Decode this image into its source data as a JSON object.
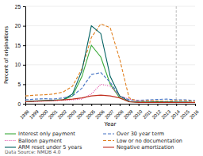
{
  "chart_data": {
    "type": "line",
    "xlabel": "Year",
    "ylabel": "Percent of originations",
    "x": [
      1998,
      1999,
      2000,
      2001,
      2002,
      2003,
      2004,
      2005,
      2006,
      2007,
      2008,
      2009,
      2010,
      2011,
      2012,
      2013,
      2014,
      2015,
      2016
    ],
    "series": [
      {
        "name": "Interest only payment",
        "color": "#3aaa3a",
        "line_style": "solid",
        "values": [
          0.5,
          0.7,
          0.8,
          0.9,
          1.0,
          2.0,
          7.0,
          15.0,
          12.0,
          5.0,
          1.5,
          0.5,
          0.4,
          0.4,
          0.5,
          0.5,
          0.4,
          0.4,
          0.3
        ]
      },
      {
        "name": "Over 30 year term",
        "color": "#4472c4",
        "line_style": "dashed",
        "values": [
          1.0,
          1.2,
          1.3,
          1.2,
          1.5,
          2.0,
          4.0,
          7.5,
          8.0,
          5.5,
          2.0,
          1.0,
          0.9,
          1.0,
          1.1,
          1.2,
          1.0,
          1.0,
          0.8
        ]
      },
      {
        "name": "Balloon payment",
        "color": "#e040a0",
        "line_style": "dotted",
        "values": [
          0.5,
          0.6,
          0.7,
          0.8,
          0.9,
          1.0,
          1.2,
          2.5,
          5.0,
          4.5,
          2.0,
          1.2,
          0.8,
          0.7,
          0.6,
          0.5,
          0.4,
          0.4,
          0.3
        ]
      },
      {
        "name": "Low or no documentation",
        "color": "#e08020",
        "line_style": "dashed",
        "values": [
          2.0,
          2.2,
          2.3,
          2.5,
          3.0,
          4.5,
          9.0,
          17.0,
          20.5,
          19.5,
          11.5,
          1.5,
          0.5,
          0.8,
          0.7,
          0.6,
          0.8,
          0.8,
          0.6
        ]
      },
      {
        "name": "ARM reset under 5 years",
        "color": "#006060",
        "line_style": "solid",
        "values": [
          0.5,
          0.7,
          0.8,
          0.9,
          1.0,
          2.5,
          8.5,
          20.0,
          18.0,
          7.0,
          2.0,
          0.6,
          0.4,
          0.4,
          0.4,
          0.4,
          0.4,
          0.4,
          0.3
        ]
      },
      {
        "name": "Negative amortization",
        "color": "#c03020",
        "line_style": "solid",
        "values": [
          0.5,
          0.6,
          0.7,
          0.8,
          1.0,
          1.2,
          1.5,
          2.0,
          2.2,
          2.0,
          1.5,
          0.5,
          0.3,
          0.3,
          0.3,
          0.3,
          0.3,
          0.3,
          0.3
        ]
      }
    ],
    "vline_x": 2014,
    "xlim": [
      1998,
      2016
    ],
    "xticks": [
      1998,
      1999,
      2000,
      2001,
      2002,
      2003,
      2004,
      2005,
      2006,
      2007,
      2008,
      2009,
      2010,
      2011,
      2012,
      2013,
      2014,
      2015,
      2016
    ],
    "ylim": [
      0,
      25
    ],
    "yticks": [
      0,
      5,
      10,
      15,
      20,
      25
    ],
    "grid": true,
    "legend": "bottom",
    "annotations": [
      "Data Source: NMDB 4.0"
    ]
  }
}
